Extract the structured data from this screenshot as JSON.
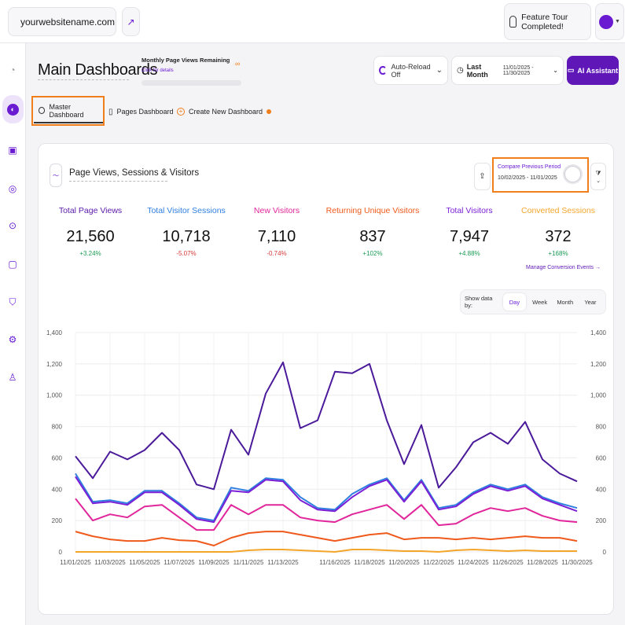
{
  "topbar": {
    "site_name": "yourwebsitename.com",
    "tour_label": "Feature Tour Completed!"
  },
  "sidebar": {
    "items": [
      "gauge-icon",
      "dashboard-icon",
      "bag-icon",
      "fingerprint-icon",
      "target-icon",
      "chat-icon",
      "shield-icon",
      "gear-icon",
      "user-icon"
    ]
  },
  "header": {
    "title": "Main Dashboards",
    "quota_label": "Monthly Page Views Remaining",
    "quota_link": "Click for details",
    "quota_value": "∞",
    "auto_reload": "Auto-Reload Off",
    "period": "Last Month",
    "date_range": "11/01/2025 - 11/30/2025",
    "ai_button": "AI Assistant"
  },
  "tabs": [
    {
      "label": "Master Dashboard"
    },
    {
      "label": "Pages Dashboard"
    },
    {
      "label": "Create New Dashboard"
    }
  ],
  "card": {
    "title": "Page Views, Sessions & Visitors",
    "compare_label": "Compare Previous Period",
    "compare_dates": "10/02/2025 - 11/01/2025",
    "compare_enabled": false,
    "manage_link": "Manage Conversion Events →",
    "show_data_label": "Show data by:",
    "periods": [
      "Day",
      "Week",
      "Month",
      "Year"
    ],
    "selected_period": "Day"
  },
  "metrics": [
    {
      "label": "Total Page Views",
      "value": "21,560",
      "change": "+3.24%",
      "color": "#5a1aa8",
      "change_color": "#1a9b55"
    },
    {
      "label": "Total Visitor Sessions",
      "value": "10,718",
      "change": "-5.07%",
      "color": "#2f7fe0",
      "change_color": "#d63a3a"
    },
    {
      "label": "New Visitors",
      "value": "7,110",
      "change": "-0.74%",
      "color": "#e0269a",
      "change_color": "#d63a3a"
    },
    {
      "label": "Returning Unique Visitors",
      "value": "837",
      "change": "+102%",
      "color": "#ef5a1c",
      "change_color": "#1a9b55"
    },
    {
      "label": "Total Visitors",
      "value": "7,947",
      "change": "+4.88%",
      "color": "#7b1fd6",
      "change_color": "#1a9b55"
    },
    {
      "label": "Converted Sessions",
      "value": "372",
      "change": "+168%",
      "color": "#f4a62a",
      "change_color": "#1a9b55"
    }
  ],
  "chart_data": {
    "type": "line",
    "x": [
      "11/01/2025",
      "11/02/2025",
      "11/03/2025",
      "11/04/2025",
      "11/05/2025",
      "11/06/2025",
      "11/07/2025",
      "11/08/2025",
      "11/09/2025",
      "11/10/2025",
      "11/11/2025",
      "11/12/2025",
      "11/13/2025",
      "11/14/2025",
      "11/15/2025",
      "11/16/2025",
      "11/17/2025",
      "11/18/2025",
      "11/19/2025",
      "11/20/2025",
      "11/21/2025",
      "11/22/2025",
      "11/23/2025",
      "11/24/2025",
      "11/25/2025",
      "11/26/2025",
      "11/27/2025",
      "11/28/2025",
      "11/29/2025",
      "11/30/2025"
    ],
    "tick_labels": [
      "11/01/2025",
      "11/03/2025",
      "11/05/2025",
      "11/07/2025",
      "11/09/2025",
      "11/11/2025",
      "11/13/2025",
      "11/16/2025",
      "11/18/2025",
      "11/20/2025",
      "11/22/2025",
      "11/24/2025",
      "11/26/2025",
      "11/28/2025",
      "11/30/2025"
    ],
    "ylim": [
      0,
      1400
    ],
    "yticks": [
      "0",
      "200",
      "400",
      "600",
      "800",
      "1,000",
      "1,200",
      "1,400"
    ],
    "series": [
      {
        "color": "#4a1a9a",
        "values": [
          610,
          470,
          640,
          590,
          650,
          760,
          650,
          430,
          400,
          780,
          620,
          1010,
          1210,
          790,
          840,
          1150,
          1140,
          1200,
          840,
          560,
          810,
          410,
          540,
          700,
          760,
          690,
          830,
          590,
          500,
          450
        ]
      },
      {
        "color": "#2f7fe0",
        "values": [
          500,
          320,
          330,
          310,
          390,
          390,
          310,
          220,
          200,
          410,
          390,
          470,
          460,
          350,
          280,
          270,
          370,
          430,
          470,
          330,
          460,
          280,
          300,
          380,
          430,
          400,
          430,
          350,
          310,
          280
        ]
      },
      {
        "color": "#7b1fd6",
        "values": [
          480,
          310,
          320,
          300,
          380,
          380,
          300,
          210,
          190,
          390,
          380,
          460,
          450,
          330,
          270,
          260,
          350,
          420,
          460,
          320,
          450,
          270,
          290,
          370,
          420,
          390,
          420,
          340,
          300,
          260
        ]
      },
      {
        "color": "#e0269a",
        "values": [
          340,
          200,
          240,
          220,
          290,
          300,
          220,
          140,
          140,
          300,
          240,
          300,
          300,
          220,
          200,
          190,
          240,
          270,
          300,
          210,
          300,
          170,
          180,
          240,
          280,
          260,
          280,
          230,
          200,
          190
        ]
      },
      {
        "color": "#ef5a1c",
        "values": [
          130,
          100,
          80,
          70,
          70,
          90,
          75,
          70,
          40,
          90,
          120,
          130,
          130,
          110,
          90,
          70,
          90,
          110,
          120,
          80,
          90,
          90,
          80,
          90,
          80,
          90,
          100,
          90,
          90,
          70
        ]
      },
      {
        "color": "#f4a62a",
        "values": [
          0,
          0,
          0,
          0,
          0,
          0,
          0,
          0,
          0,
          0,
          10,
          15,
          15,
          10,
          5,
          0,
          15,
          15,
          10,
          5,
          5,
          0,
          10,
          15,
          10,
          5,
          10,
          5,
          5,
          5
        ]
      }
    ]
  }
}
